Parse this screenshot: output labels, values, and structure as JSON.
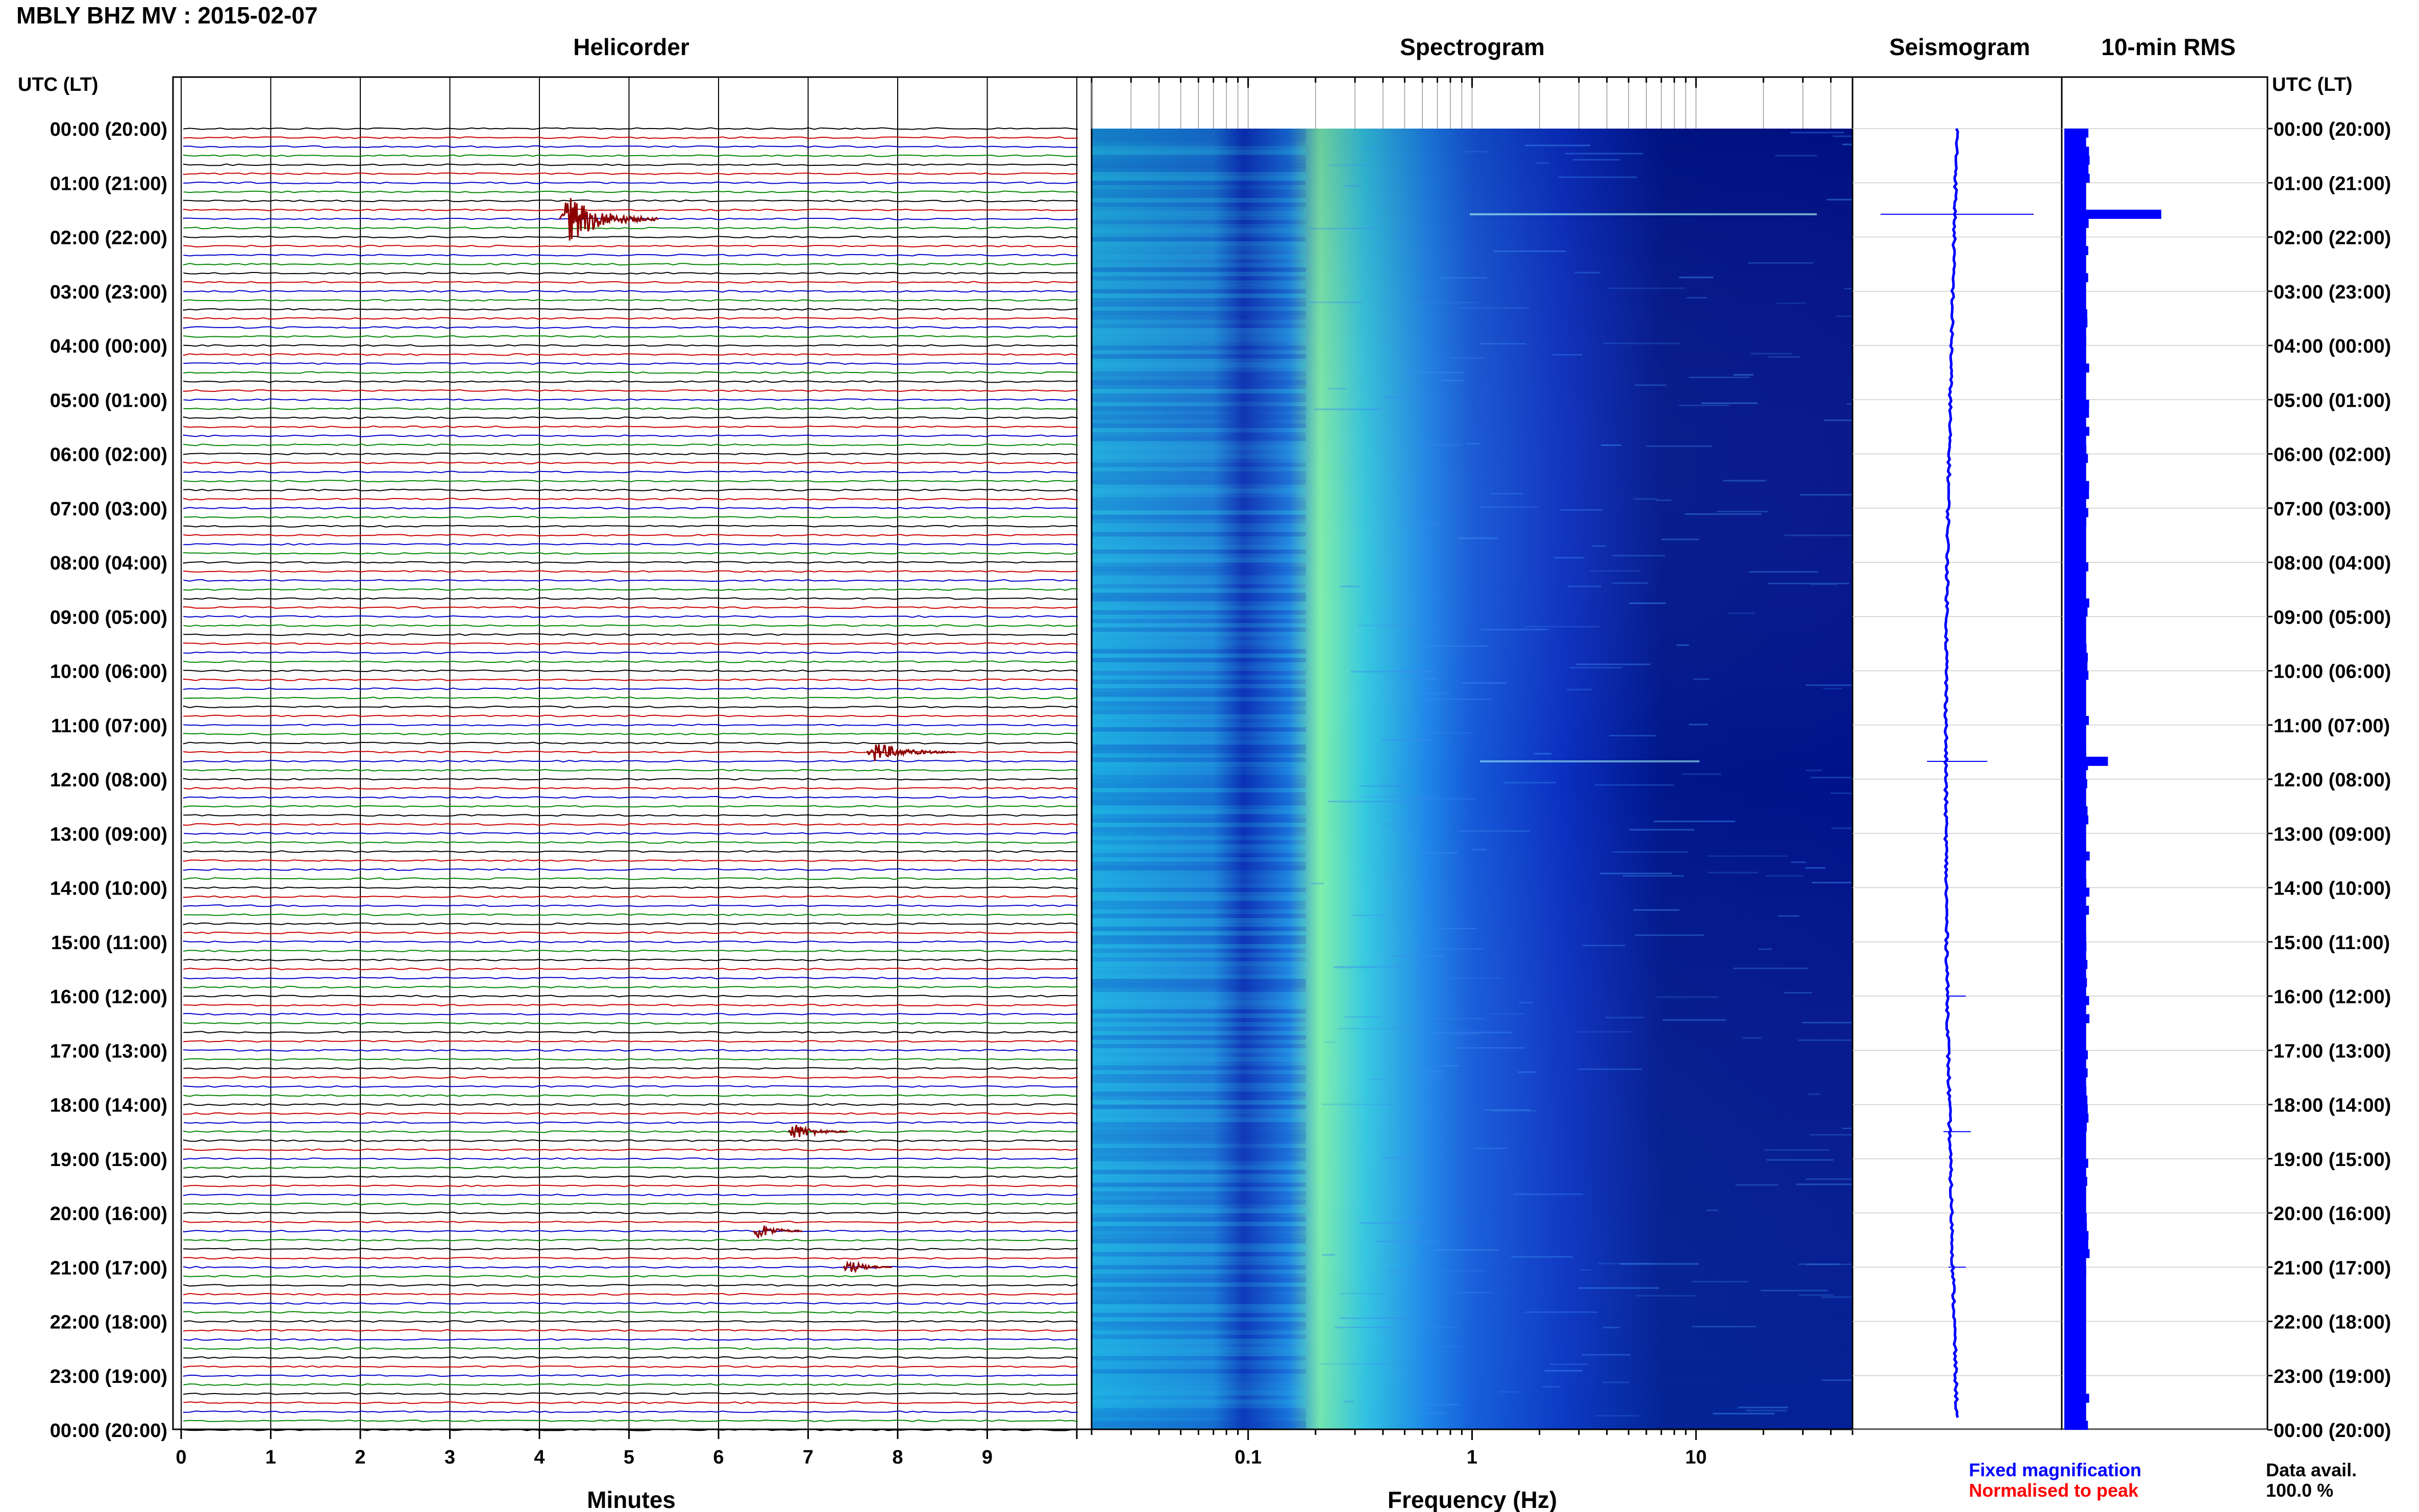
{
  "header": {
    "title": "MBLY BHZ MV : 2015-02-07",
    "utc_label_left": "UTC (LT)",
    "utc_label_right": "UTC (LT)"
  },
  "panels": {
    "helicorder": "Helicorder",
    "spectrogram": "Spectrogram",
    "seismogram": "Seismogram",
    "rms": "10-min RMS"
  },
  "hour_labels": [
    "00:00 (20:00)",
    "01:00 (21:00)",
    "02:00 (22:00)",
    "03:00 (23:00)",
    "04:00 (00:00)",
    "05:00 (01:00)",
    "06:00 (02:00)",
    "07:00 (03:00)",
    "08:00 (04:00)",
    "09:00 (05:00)",
    "10:00 (06:00)",
    "11:00 (07:00)",
    "12:00 (08:00)",
    "13:00 (09:00)",
    "14:00 (10:00)",
    "15:00 (11:00)",
    "16:00 (12:00)",
    "17:00 (13:00)",
    "18:00 (14:00)",
    "19:00 (15:00)",
    "20:00 (16:00)",
    "21:00 (17:00)",
    "22:00 (18:00)",
    "23:00 (19:00)",
    "00:00 (20:00)"
  ],
  "footer": {
    "fixed_magnification": "Fixed magnification",
    "normalised": "Normalised to peak",
    "data_avail_label": "Data avail.",
    "data_avail_value": "100.0 %"
  },
  "colors": {
    "trace_cycle": [
      "#000000",
      "#cc0000",
      "#0000cc",
      "#008800"
    ],
    "fixed_magnification": "#0000ff",
    "normalised": "#ff0000",
    "seismogram": "#0000ff",
    "rms_bar": "#0000ff",
    "event": "#8b0000"
  },
  "chart_data": [
    {
      "type": "helicorder",
      "title": "Helicorder",
      "xlabel": "Minutes",
      "x_ticks": [
        "0",
        "1",
        "2",
        "3",
        "4",
        "5",
        "6",
        "7",
        "8",
        "9"
      ],
      "xlim": [
        0,
        10
      ],
      "ylim_utc_hours": [
        0,
        24
      ],
      "lines_per_hour": 6,
      "events": [
        {
          "utc_hour": 1.67,
          "minute": 4.3,
          "amplitude": 1.0,
          "duration_min": 1.0
        },
        {
          "utc_hour": 11.5,
          "minute": 7.7,
          "amplitude": 0.35,
          "duration_min": 0.9
        },
        {
          "utc_hour": 18.5,
          "minute": 6.8,
          "amplitude": 0.3,
          "duration_min": 0.6
        },
        {
          "utc_hour": 20.33,
          "minute": 6.4,
          "amplitude": 0.3,
          "duration_min": 0.5
        },
        {
          "utc_hour": 21.0,
          "minute": 7.4,
          "amplitude": 0.25,
          "duration_min": 0.5
        }
      ]
    },
    {
      "type": "heatmap",
      "title": "Spectrogram",
      "xlabel": "Frequency (Hz)",
      "x_scale": "log",
      "xlim": [
        0.02,
        50
      ],
      "x_ticks": [
        {
          "value": 0.1,
          "label": "0.1"
        },
        {
          "value": 1,
          "label": "1"
        },
        {
          "value": 10,
          "label": "10"
        }
      ],
      "ylim_utc_hours": [
        0,
        24
      ],
      "peak_frequency_hz": 0.25
    },
    {
      "type": "line",
      "title": "Seismogram",
      "ylim_utc_hours": [
        0,
        24
      ],
      "spikes": [
        {
          "utc_hour": 1.58,
          "amplitude": 1.0
        },
        {
          "utc_hour": 11.67,
          "amplitude": 0.35
        },
        {
          "utc_hour": 18.5,
          "amplitude": 0.12
        },
        {
          "utc_hour": 16.0,
          "amplitude": 0.05
        },
        {
          "utc_hour": 21.0,
          "amplitude": 0.05
        }
      ]
    },
    {
      "type": "bar",
      "title": "10-min RMS",
      "ylim_utc_hours": [
        0,
        24
      ],
      "peaks": [
        {
          "utc_hour": 1.58,
          "value": 1.0
        },
        {
          "utc_hour": 11.67,
          "value": 0.45
        },
        {
          "utc_hour": 18.5,
          "value": 0.2
        }
      ],
      "baseline": 0.25
    }
  ]
}
